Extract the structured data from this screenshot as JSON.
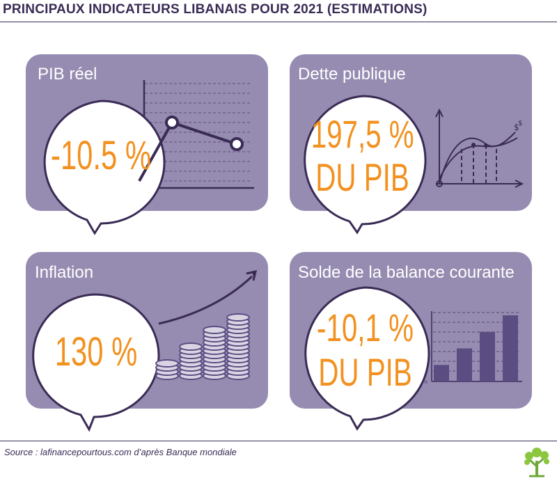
{
  "title": "PRINCIPAUX INDICATEURS LIBANAIS POUR 2021 (ESTIMATIONS)",
  "source": "Source : lafinancepourtous.com d’après Banque mondiale",
  "colors": {
    "panel": "#968cb1",
    "value": "#f2911f",
    "dark": "#3a2b55",
    "bar": "#5b4c82"
  },
  "panels": [
    {
      "label": "PIB réel",
      "value": "-10.5 %"
    },
    {
      "label": "Dette publique",
      "value_line1": "197,5 %",
      "value_line2": "DU PIB"
    },
    {
      "label": "Inflation",
      "value": "130 %"
    },
    {
      "label": "Solde de la balance courante",
      "value_line1": "-10,1 %",
      "value_line2": "DU PIB"
    }
  ],
  "icons": {
    "pib": "line-chart-icon",
    "dette": "curve-chart-icon",
    "inflation": "coin-stacks-icon",
    "solde": "bar-chart-icon",
    "logo": "tree-logo-icon"
  },
  "solde_chart": {
    "values": [
      1,
      2,
      3,
      4
    ],
    "axis_zero": "0"
  }
}
